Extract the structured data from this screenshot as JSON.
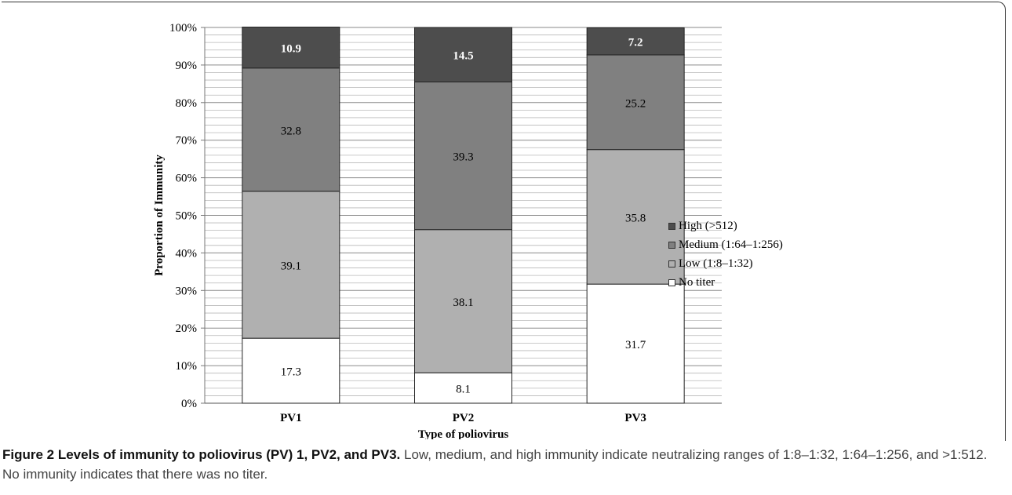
{
  "chart_data": {
    "type": "bar",
    "stacked": true,
    "categories": [
      "PV1",
      "PV2",
      "PV3"
    ],
    "series": [
      {
        "name": "No titer",
        "color": "#ffffff",
        "values": [
          17.3,
          8.1,
          31.7
        ],
        "labels": [
          "17.3",
          "8.1",
          "31.7"
        ]
      },
      {
        "name": "Low (1:8–1:32)",
        "color": "#b0b0b0",
        "values": [
          39.1,
          38.1,
          35.8
        ],
        "labels": [
          "39.1",
          "38.1",
          "35.8"
        ]
      },
      {
        "name": "Medium  (1:64–1:256)",
        "color": "#808080",
        "values": [
          32.8,
          39.3,
          25.2
        ],
        "labels": [
          "32.8",
          "39.3",
          "25.2"
        ]
      },
      {
        "name": "High (>512)",
        "color": "#4d4d4d",
        "values": [
          10.9,
          14.5,
          7.2
        ],
        "labels": [
          "10.9",
          "14.5",
          "7.2"
        ]
      }
    ],
    "ylim": [
      0,
      100
    ],
    "yticks": [
      "0%",
      "10%",
      "20%",
      "30%",
      "40%",
      "50%",
      "60%",
      "70%",
      "80%",
      "90%",
      "100%"
    ],
    "ylabel": "Proportion  of  Immunity",
    "xlabel": "Type of poliovirus",
    "grid": true,
    "legend_position": "right"
  },
  "caption": {
    "label": "Figure 2 Levels of immunity to poliovirus (PV) 1, PV2, and PV3.",
    "text": " Low, medium, and high immunity indicate neutralizing ranges of 1:8–1:32, 1:64–1:256, and >1:512. No immunity indicates that there was no titer."
  }
}
